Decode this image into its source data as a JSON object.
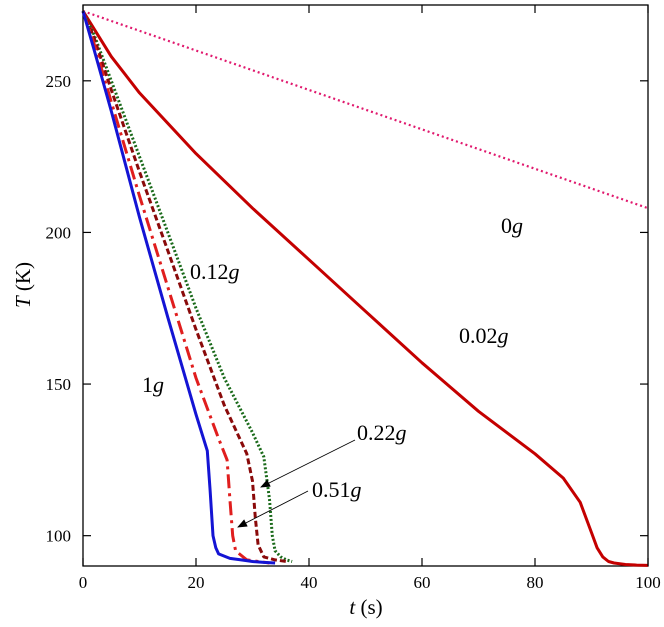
{
  "chart_data": {
    "type": "line",
    "title": "",
    "xlabel": {
      "var": "t",
      "unit": " (s)"
    },
    "ylabel": {
      "var": "T",
      "unit": " (K)"
    },
    "xlim": [
      0,
      100
    ],
    "ylim": [
      90,
      275
    ],
    "xticks": [
      0,
      20,
      40,
      60,
      80,
      100
    ],
    "yticks": [
      100,
      150,
      200,
      250
    ],
    "grid": false,
    "legend": "none",
    "series": [
      {
        "color": "#e0196e",
        "dash": "2,3",
        "width": 2.2,
        "x": [
          0,
          100
        ],
        "y": [
          273,
          208
        ]
      },
      {
        "color": "#c40000",
        "dash": "none",
        "width": 3,
        "x": [
          0,
          5,
          10,
          20,
          30,
          40,
          50,
          60,
          70,
          80,
          85,
          88,
          90,
          91,
          92,
          93,
          94,
          96,
          98,
          100
        ],
        "y": [
          273,
          258,
          246,
          226,
          208,
          191,
          174,
          157,
          141,
          127,
          119,
          111,
          101,
          96,
          93,
          91.5,
          91,
          90.5,
          90.3,
          90.2
        ]
      },
      {
        "color": "#1a6a1a",
        "dash": "2,2",
        "width": 3,
        "x": [
          0,
          2,
          5,
          10,
          15,
          20,
          25,
          30,
          32,
          33,
          33.5,
          34,
          35,
          36,
          37
        ],
        "y": [
          273,
          265,
          250,
          225,
          200,
          175,
          152,
          134,
          126,
          112,
          100,
          95,
          93,
          92,
          91.5
        ]
      },
      {
        "color": "#8a0a0a",
        "dash": "6,3",
        "width": 3,
        "x": [
          0,
          2,
          5,
          10,
          15,
          20,
          25,
          29,
          30,
          30.5,
          31,
          32,
          34,
          36
        ],
        "y": [
          273,
          264,
          247,
          220,
          194,
          168,
          143,
          127,
          118,
          106,
          97,
          93,
          92,
          91.5
        ]
      },
      {
        "color": "#e01e1e",
        "dash": "14,5,3,5",
        "width": 3,
        "x": [
          0,
          2,
          5,
          10,
          15,
          20,
          24,
          25.5,
          26,
          26.5,
          27,
          29,
          33
        ],
        "y": [
          273,
          262,
          243,
          212,
          182,
          152,
          132,
          125,
          112,
          100,
          95,
          92,
          91
        ]
      },
      {
        "color": "#1414d4",
        "dash": "none",
        "width": 3,
        "x": [
          0,
          2,
          5,
          10,
          15,
          20,
          22,
          22.5,
          23,
          23.5,
          24,
          26,
          28,
          30,
          32,
          34
        ],
        "y": [
          273,
          260,
          240,
          205,
          172,
          140,
          128,
          115,
          100,
          96,
          94,
          92.5,
          92,
          91.5,
          91.2,
          91
        ]
      }
    ],
    "annotations": [
      {
        "num": "0",
        "unit": "g"
      },
      {
        "num": "0.02",
        "unit": "g"
      },
      {
        "num": "0.12",
        "unit": "g"
      },
      {
        "num": "1",
        "unit": "g"
      },
      {
        "num": "0.22",
        "unit": "g"
      },
      {
        "num": "0.51",
        "unit": "g"
      }
    ]
  }
}
